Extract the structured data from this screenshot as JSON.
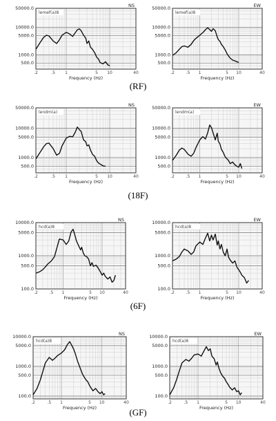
{
  "chart_data": [
    {
      "type": "line",
      "caption": "(RF)",
      "direction": "NS",
      "title": "NS",
      "label_tag": "lemef(a)8",
      "xlabel": "Frequency (Hz)",
      "xlog": true,
      "xlim": [
        0.2,
        40
      ],
      "xticks": [
        0.2,
        0.5,
        1,
        5,
        10,
        40
      ],
      "xticklabels": [
        ".2",
        ".5",
        "1",
        "5",
        "10",
        "40"
      ],
      "ylog": true,
      "ylim": [
        300,
        50000
      ],
      "yticks": [
        500,
        1000,
        5000,
        10000,
        50000
      ],
      "yticklabels": [
        "500.0",
        "1000.0",
        "5000.0",
        "10000.0",
        "50000.0"
      ],
      "series": [
        {
          "x": [
            0.2,
            0.25,
            0.3,
            0.35,
            0.4,
            0.5,
            0.6,
            0.7,
            0.8,
            1.0,
            1.2,
            1.4,
            1.6,
            1.8,
            2.0,
            2.2,
            2.5,
            2.8,
            3.0,
            3.3,
            3.6,
            4.0,
            4.5,
            5.0,
            5.5,
            6.0,
            7.0,
            8.0,
            9.0,
            10.0
          ],
          "y": [
            1600,
            2800,
            4300,
            5200,
            4900,
            3200,
            2600,
            3600,
            5200,
            6600,
            5800,
            4700,
            6300,
            8200,
            8900,
            7600,
            5200,
            4100,
            2600,
            3200,
            1900,
            1600,
            1200,
            820,
            700,
            520,
            470,
            560,
            430,
            400
          ]
        }
      ]
    },
    {
      "type": "line",
      "caption": "(RF)",
      "direction": "EW",
      "title": "EW",
      "label_tag": "lemef(a)8",
      "xlabel": "Frequency (Hz)",
      "xlog": true,
      "xlim": [
        0.2,
        40
      ],
      "xticks": [
        0.2,
        0.5,
        1,
        5,
        10,
        40
      ],
      "xticklabels": [
        ".2",
        ".5",
        "1",
        "5",
        "10",
        "40"
      ],
      "ylog": true,
      "ylim": [
        300,
        50000
      ],
      "yticks": [
        500,
        1000,
        5000,
        10000,
        50000
      ],
      "yticklabels": [
        "500.0",
        "1000.0",
        "5000.0",
        "10000.0",
        "50000.0"
      ],
      "series": [
        {
          "x": [
            0.2,
            0.25,
            0.3,
            0.35,
            0.4,
            0.5,
            0.6,
            0.7,
            0.8,
            1.0,
            1.2,
            1.4,
            1.6,
            1.8,
            2.0,
            2.2,
            2.5,
            2.8,
            3.0,
            3.3,
            3.6,
            4.0,
            4.5,
            5.0,
            5.5,
            6.0,
            7.0,
            8.0,
            9.0,
            10.0
          ],
          "y": [
            950,
            1200,
            1600,
            2000,
            2100,
            1900,
            2400,
            3300,
            4000,
            5200,
            6500,
            8200,
            9800,
            8300,
            7200,
            9000,
            7600,
            4500,
            3600,
            3100,
            2400,
            2000,
            1500,
            1100,
            900,
            760,
            640,
            600,
            560,
            520
          ]
        }
      ]
    },
    {
      "type": "line",
      "caption": "(18F)",
      "direction": "NS",
      "title": "NS",
      "label_tag": "lendm(a)",
      "xlabel": "Frequency (Hz)",
      "xlog": true,
      "xlim": [
        0.2,
        40
      ],
      "xticks": [
        0.2,
        0.5,
        1,
        5,
        10,
        40
      ],
      "xticklabels": [
        ".2",
        ".5",
        "1",
        "5",
        "10",
        "40"
      ],
      "ylog": true,
      "ylim": [
        300,
        50000
      ],
      "yticks": [
        500,
        1000,
        5000,
        10000,
        50000
      ],
      "yticklabels": [
        "500.0",
        "1000.0",
        "5000.0",
        "10000.0",
        "50000.0"
      ],
      "series": [
        {
          "x": [
            0.2,
            0.25,
            0.3,
            0.35,
            0.4,
            0.5,
            0.6,
            0.7,
            0.8,
            1.0,
            1.2,
            1.4,
            1.6,
            1.8,
            2.0,
            2.2,
            2.5,
            2.8,
            3.0,
            3.3,
            3.6,
            4.0,
            4.5,
            5.0,
            5.5,
            6.0,
            7.0,
            8.0
          ],
          "y": [
            900,
            1500,
            2300,
            3000,
            3100,
            2000,
            1200,
            1400,
            2500,
            4600,
            5300,
            5100,
            7200,
            11000,
            9000,
            7800,
            4000,
            3500,
            2500,
            2700,
            1800,
            1300,
            1100,
            780,
            650,
            600,
            520,
            500
          ]
        }
      ]
    },
    {
      "type": "line",
      "caption": "(18F)",
      "direction": "EW",
      "title": "EW",
      "label_tag": "lendm(a)",
      "xlabel": "Frequency (Hz)",
      "xlog": true,
      "xlim": [
        0.2,
        40
      ],
      "xticks": [
        0.2,
        0.5,
        1,
        5,
        10,
        40
      ],
      "xticklabels": [
        ".2",
        ".5",
        "1",
        "5",
        "10",
        "40"
      ],
      "ylog": true,
      "ylim": [
        300,
        50000
      ],
      "yticks": [
        500,
        1000,
        5000,
        10000,
        50000
      ],
      "yticklabels": [
        "500.0",
        "1000.0",
        "5000.0",
        "10000.0",
        "50000.0"
      ],
      "series": [
        {
          "x": [
            0.2,
            0.25,
            0.3,
            0.35,
            0.4,
            0.5,
            0.6,
            0.7,
            0.8,
            1.0,
            1.2,
            1.4,
            1.6,
            1.8,
            2.0,
            2.2,
            2.5,
            2.8,
            3.0,
            3.3,
            3.6,
            4.0,
            4.5,
            5.0,
            5.5,
            6.0,
            7.0,
            8.0,
            9.0,
            10.0,
            11.0,
            12.0
          ],
          "y": [
            800,
            1200,
            1800,
            2100,
            1900,
            1300,
            1100,
            1400,
            2200,
            4000,
            5200,
            4300,
            7000,
            13000,
            10500,
            7000,
            4000,
            6800,
            3600,
            2900,
            1900,
            1500,
            1050,
            900,
            780,
            620,
            700,
            560,
            500,
            470,
            620,
            420
          ]
        }
      ]
    },
    {
      "type": "line",
      "caption": "(6F)",
      "direction": "NS",
      "title": "NS",
      "label_tag": "hcd(a)8",
      "xlabel": "Frequency (Hz)",
      "xlog": true,
      "xlim": [
        0.2,
        40
      ],
      "xticks": [
        0.2,
        0.5,
        1,
        5,
        10,
        40
      ],
      "xticklabels": [
        ".2",
        ".5",
        "1",
        "5",
        "10",
        "40"
      ],
      "ylog": true,
      "ylim": [
        100,
        10000
      ],
      "yticks": [
        100,
        500,
        1000,
        5000,
        10000
      ],
      "yticklabels": [
        "100.0",
        "500.0",
        "1000.0",
        "5000.0",
        "10000.0"
      ],
      "series": [
        {
          "x": [
            0.2,
            0.25,
            0.3,
            0.35,
            0.4,
            0.5,
            0.6,
            0.7,
            0.8,
            1.0,
            1.2,
            1.4,
            1.6,
            1.8,
            2.0,
            2.2,
            2.5,
            2.8,
            3.0,
            3.3,
            3.6,
            4.0,
            4.5,
            5.0,
            5.5,
            6.0,
            7.0,
            8.0,
            9.0,
            10.0,
            11.0,
            12.0,
            14.0,
            16.0,
            18.0,
            20.0,
            22.0
          ],
          "y": [
            300,
            330,
            380,
            460,
            560,
            700,
            950,
            1800,
            3200,
            3000,
            2200,
            2800,
            5200,
            6300,
            4200,
            2800,
            2000,
            1500,
            1800,
            1200,
            1000,
            950,
            800,
            500,
            620,
            480,
            520,
            420,
            330,
            260,
            300,
            240,
            200,
            230,
            160,
            180,
            260
          ]
        }
      ]
    },
    {
      "type": "line",
      "caption": "(6F)",
      "direction": "EW",
      "title": "EW",
      "label_tag": "hcd(a)8",
      "xlabel": "Frequency (Hz)",
      "xlog": true,
      "xlim": [
        0.2,
        40
      ],
      "xticks": [
        0.2,
        0.5,
        1,
        5,
        10,
        40
      ],
      "xticklabels": [
        ".2",
        ".5",
        "1",
        "5",
        "10",
        "40"
      ],
      "ylog": true,
      "ylim": [
        100,
        10000
      ],
      "yticks": [
        100,
        500,
        1000,
        5000,
        10000
      ],
      "yticklabels": [
        "100.0",
        "500.0",
        "1000.0",
        "5000.0",
        "10000.0"
      ],
      "series": [
        {
          "x": [
            0.2,
            0.25,
            0.3,
            0.35,
            0.4,
            0.5,
            0.6,
            0.7,
            0.8,
            1.0,
            1.2,
            1.4,
            1.6,
            1.8,
            2.0,
            2.2,
            2.5,
            2.8,
            3.0,
            3.3,
            3.6,
            4.0,
            4.5,
            5.0,
            5.5,
            6.0,
            7.0,
            8.0,
            9.0,
            10.0,
            11.0,
            12.0,
            14.0,
            16.0,
            18.0
          ],
          "y": [
            700,
            800,
            950,
            1300,
            1600,
            1400,
            1100,
            1300,
            2000,
            2600,
            2200,
            3400,
            4800,
            2800,
            4200,
            3000,
            4500,
            2100,
            2800,
            1600,
            2200,
            1300,
            1000,
            1600,
            900,
            750,
            600,
            700,
            450,
            380,
            320,
            260,
            220,
            150,
            180
          ]
        }
      ]
    },
    {
      "type": "line",
      "caption": "(GF)",
      "direction": "NS",
      "title": "NS",
      "label_tag": "hcd(a)8",
      "xlabel": "Frequency (Hz)",
      "xlog": true,
      "xlim": [
        0.2,
        40
      ],
      "xticks": [
        0.2,
        0.5,
        1,
        5,
        10,
        40
      ],
      "xticklabels": [
        ".2",
        ".5",
        "1",
        "5",
        "10",
        "40"
      ],
      "ylog": true,
      "ylim": [
        80,
        10000
      ],
      "yticks": [
        100,
        500,
        1000,
        5000,
        10000
      ],
      "yticklabels": [
        "100.0",
        "500.0",
        "1000.0",
        "5000.0",
        "10000.0"
      ],
      "series": [
        {
          "x": [
            0.2,
            0.25,
            0.3,
            0.35,
            0.4,
            0.5,
            0.6,
            0.7,
            0.8,
            1.0,
            1.2,
            1.4,
            1.6,
            1.8,
            2.0,
            2.2,
            2.5,
            2.8,
            3.0,
            3.3,
            3.6,
            4.0,
            4.5,
            5.0,
            5.5,
            6.0,
            7.0,
            8.0,
            9.0,
            10.0,
            11.0,
            12.0
          ],
          "y": [
            110,
            180,
            340,
            700,
            1300,
            2000,
            1600,
            1900,
            2300,
            2800,
            3600,
            5400,
            6800,
            5100,
            3800,
            2700,
            1500,
            1000,
            780,
            560,
            450,
            360,
            300,
            220,
            180,
            150,
            180,
            140,
            120,
            140,
            110,
            120
          ]
        }
      ]
    },
    {
      "type": "line",
      "caption": "(GF)",
      "direction": "EW",
      "title": "EW",
      "label_tag": "hcd(a)8",
      "xlabel": "Frequency (Hz)",
      "xlog": true,
      "xlim": [
        0.2,
        40
      ],
      "xticks": [
        0.2,
        0.5,
        1,
        5,
        10,
        40
      ],
      "xticklabels": [
        ".2",
        ".5",
        "1",
        "5",
        "10",
        "40"
      ],
      "ylog": true,
      "ylim": [
        80,
        10000
      ],
      "yticks": [
        100,
        500,
        1000,
        5000,
        10000
      ],
      "yticklabels": [
        "100.0",
        "500.0",
        "1000.0",
        "5000.0",
        "10000.0"
      ],
      "series": [
        {
          "x": [
            0.2,
            0.25,
            0.3,
            0.35,
            0.4,
            0.5,
            0.6,
            0.7,
            0.8,
            1.0,
            1.2,
            1.4,
            1.6,
            1.8,
            2.0,
            2.2,
            2.5,
            2.8,
            3.0,
            3.3,
            3.6,
            4.0,
            4.5,
            5.0,
            5.5,
            6.0,
            7.0,
            8.0,
            9.0,
            10.0,
            11.0,
            12.0
          ],
          "y": [
            110,
            190,
            380,
            750,
            1300,
            1700,
            1500,
            1900,
            2400,
            2600,
            2200,
            3300,
            4600,
            3400,
            3900,
            2200,
            1800,
            1100,
            1400,
            850,
            620,
            480,
            400,
            300,
            250,
            200,
            160,
            190,
            140,
            150,
            110,
            130
          ]
        }
      ]
    }
  ]
}
